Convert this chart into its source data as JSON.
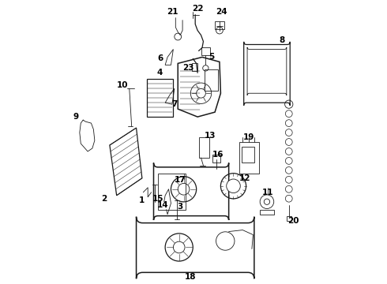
{
  "background_color": "#ffffff",
  "line_color": "#1a1a1a",
  "label_color": "#000000",
  "figsize": [
    4.9,
    3.6
  ],
  "dpi": 100,
  "label_fontsize": 7.5,
  "lw_thin": 0.6,
  "lw_med": 0.9,
  "lw_thick": 1.1
}
